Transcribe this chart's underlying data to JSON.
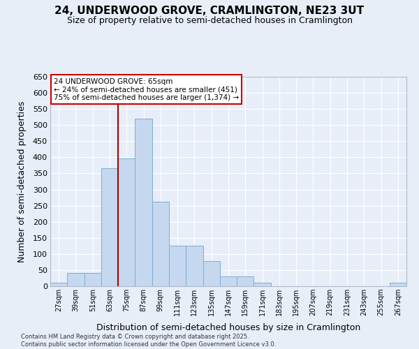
{
  "title_line1": "24, UNDERWOOD GROVE, CRAMLINGTON, NE23 3UT",
  "title_line2": "Size of property relative to semi-detached houses in Cramlington",
  "xlabel": "Distribution of semi-detached houses by size in Cramlington",
  "ylabel": "Number of semi-detached properties",
  "categories": [
    "27sqm",
    "39sqm",
    "51sqm",
    "63sqm",
    "75sqm",
    "87sqm",
    "99sqm",
    "111sqm",
    "123sqm",
    "135sqm",
    "147sqm",
    "159sqm",
    "171sqm",
    "183sqm",
    "195sqm",
    "207sqm",
    "219sqm",
    "231sqm",
    "243sqm",
    "255sqm",
    "267sqm"
  ],
  "bar_values": [
    10,
    42,
    42,
    367,
    397,
    520,
    263,
    125,
    125,
    78,
    30,
    30,
    10,
    0,
    0,
    0,
    0,
    0,
    0,
    0,
    10
  ],
  "bar_color": "#c5d8f0",
  "bar_edge_color": "#7aaed6",
  "vline_position": 3.5,
  "vline_color": "#aa0000",
  "annotation_title": "24 UNDERWOOD GROVE: 65sqm",
  "annotation_line1": "← 24% of semi-detached houses are smaller (451)",
  "annotation_line2": "75% of semi-detached houses are larger (1,374) →",
  "annotation_box_color": "#ffffff",
  "annotation_border_color": "#cc0000",
  "ylim": [
    0,
    650
  ],
  "yticks": [
    0,
    50,
    100,
    150,
    200,
    250,
    300,
    350,
    400,
    450,
    500,
    550,
    600,
    650
  ],
  "background_color": "#e8eef8",
  "grid_color": "#ffffff",
  "footer_line1": "Contains HM Land Registry data © Crown copyright and database right 2025.",
  "footer_line2": "Contains public sector information licensed under the Open Government Licence v3.0."
}
